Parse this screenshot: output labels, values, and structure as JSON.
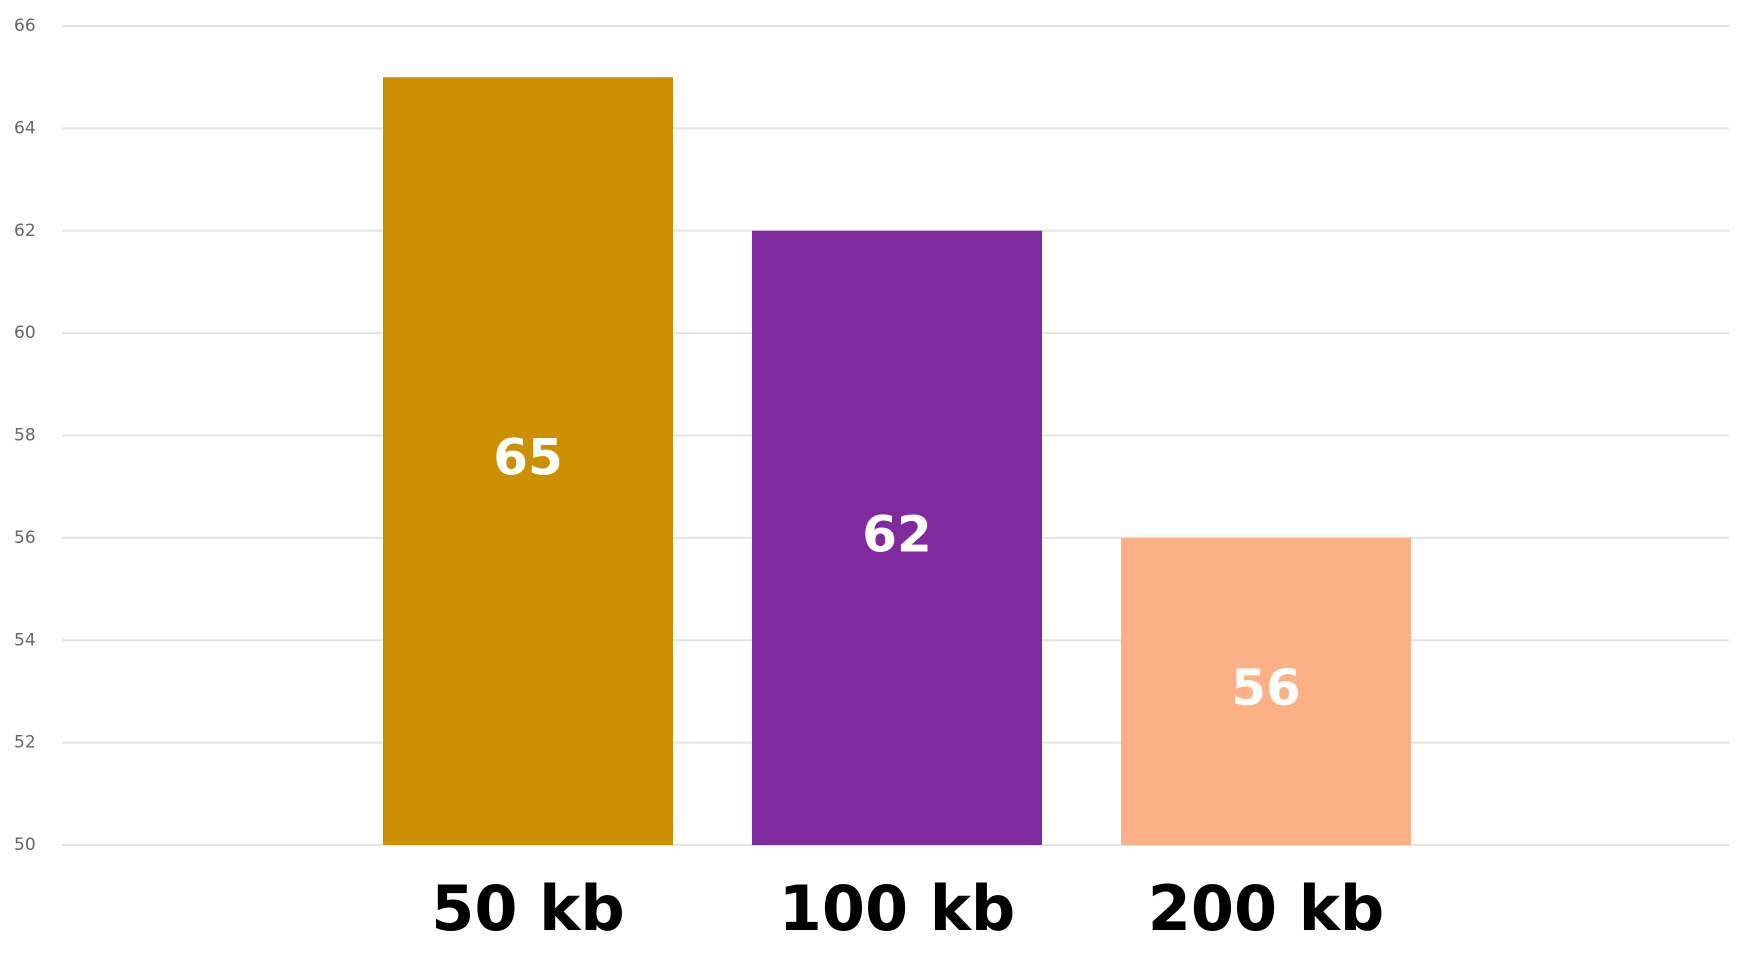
{
  "chart_data": {
    "type": "bar",
    "categories": [
      "50 kb",
      "100 kb",
      "200 kb"
    ],
    "values": [
      65,
      62,
      56
    ],
    "colors": [
      "#cc8f00",
      "#7f2a9f",
      "#fbb085"
    ],
    "ylim": [
      50,
      66
    ],
    "yticks": [
      50,
      52,
      54,
      56,
      58,
      60,
      62,
      64,
      66
    ],
    "grid": true
  }
}
